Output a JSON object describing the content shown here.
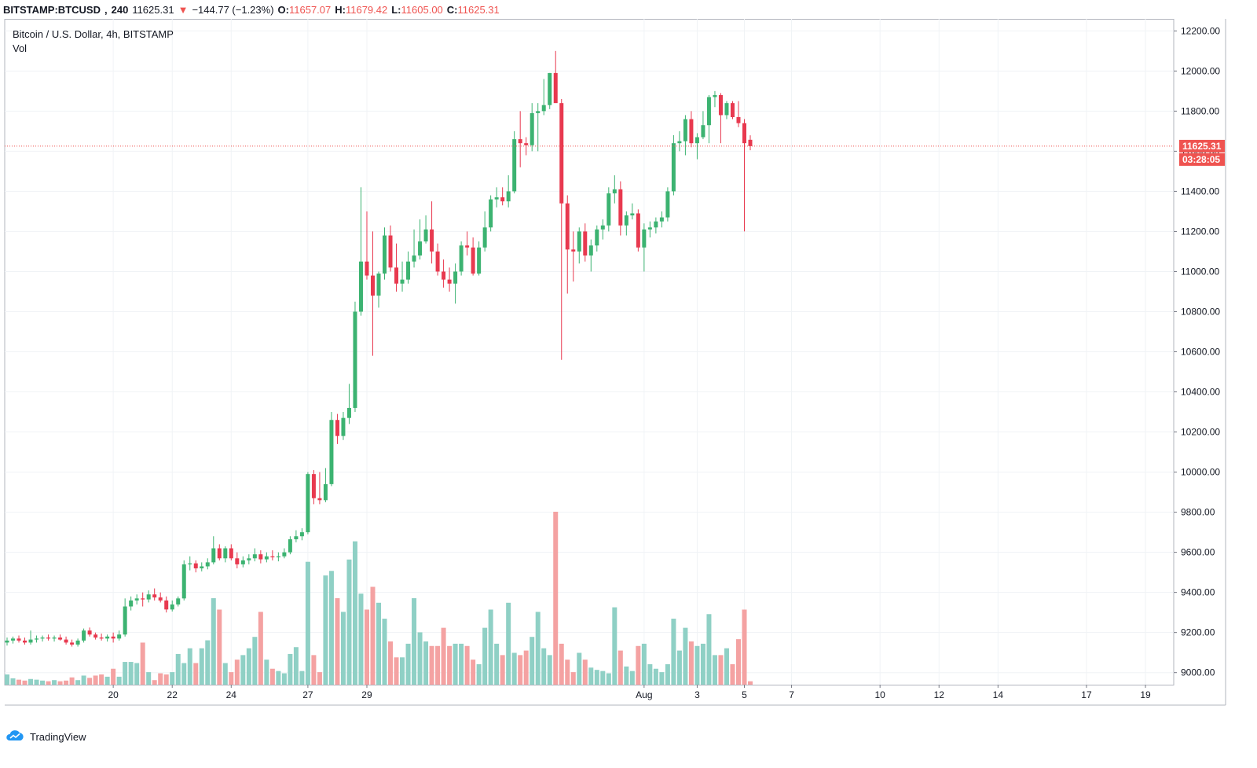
{
  "header": {
    "symbol": "BITSTAMP:BTCUSD",
    "interval": "240",
    "last_price": "11625.31",
    "arrow": "▼",
    "change": "−144.77 (−1.23%)",
    "o_label": "O:",
    "o_value": "11657.07",
    "h_label": "H:",
    "h_value": "11679.42",
    "l_label": "L:",
    "l_value": "11605.00",
    "c_label": "C:",
    "c_value": "11625.31"
  },
  "legend": {
    "title": "Bitcoin / U.S. Dollar, 4h, BITSTAMP",
    "vol_label": "Vol"
  },
  "price_tag": {
    "price": "11625.31",
    "countdown": "03:28:05"
  },
  "colors": {
    "up": "#26a69a",
    "down": "#ef5350",
    "candle_up": "#3cb371",
    "candle_down": "#e8394f",
    "vol_up": "#8fd0c5",
    "vol_down": "#f4a2a2",
    "grid": "#f0f3f6"
  },
  "footer": {
    "brand": "TradingView",
    "logo_icon": "tradingview-cloud-icon"
  },
  "chart_data": {
    "type": "candlestick",
    "title": "Bitcoin / U.S. Dollar, 4h, BITSTAMP",
    "y_axis": {
      "ticks": [
        9000,
        9200,
        9400,
        9600,
        9800,
        10000,
        10200,
        10400,
        10600,
        10800,
        11000,
        11200,
        11400,
        11600,
        11800,
        12000,
        12200
      ],
      "range": [
        8940,
        12260
      ]
    },
    "x_axis": {
      "labels": [
        "20",
        "22",
        "24",
        "27",
        "29",
        "Aug",
        "3",
        "5",
        "7",
        "10",
        "12",
        "14",
        "17",
        "19"
      ]
    },
    "current_price": 11625.31,
    "candles": [
      {
        "o": 9150,
        "h": 9175,
        "l": 9135,
        "c": 9160,
        "v": 0.45
      },
      {
        "o": 9160,
        "h": 9180,
        "l": 9145,
        "c": 9170,
        "v": 0.28
      },
      {
        "o": 9170,
        "h": 9185,
        "l": 9150,
        "c": 9160,
        "v": 0.22
      },
      {
        "o": 9160,
        "h": 9175,
        "l": 9140,
        "c": 9150,
        "v": 0.18
      },
      {
        "o": 9150,
        "h": 9210,
        "l": 9140,
        "c": 9165,
        "v": 0.25
      },
      {
        "o": 9165,
        "h": 9185,
        "l": 9150,
        "c": 9170,
        "v": 0.22
      },
      {
        "o": 9170,
        "h": 9185,
        "l": 9155,
        "c": 9175,
        "v": 0.18
      },
      {
        "o": 9175,
        "h": 9190,
        "l": 9160,
        "c": 9170,
        "v": 0.15
      },
      {
        "o": 9170,
        "h": 9185,
        "l": 9155,
        "c": 9175,
        "v": 0.2
      },
      {
        "o": 9175,
        "h": 9190,
        "l": 9160,
        "c": 9165,
        "v": 0.15
      },
      {
        "o": 9165,
        "h": 9180,
        "l": 9140,
        "c": 9150,
        "v": 0.18
      },
      {
        "o": 9150,
        "h": 9165,
        "l": 9130,
        "c": 9140,
        "v": 0.32
      },
      {
        "o": 9140,
        "h": 9170,
        "l": 9130,
        "c": 9160,
        "v": 0.2
      },
      {
        "o": 9160,
        "h": 9220,
        "l": 9150,
        "c": 9210,
        "v": 0.4
      },
      {
        "o": 9210,
        "h": 9225,
        "l": 9180,
        "c": 9190,
        "v": 0.3
      },
      {
        "o": 9190,
        "h": 9200,
        "l": 9165,
        "c": 9175,
        "v": 0.4
      },
      {
        "o": 9175,
        "h": 9195,
        "l": 9160,
        "c": 9170,
        "v": 0.45
      },
      {
        "o": 9170,
        "h": 9190,
        "l": 9155,
        "c": 9180,
        "v": 0.35
      },
      {
        "o": 9180,
        "h": 9200,
        "l": 9150,
        "c": 9170,
        "v": 0.7
      },
      {
        "o": 9170,
        "h": 9210,
        "l": 9160,
        "c": 9190,
        "v": 0.35
      },
      {
        "o": 9190,
        "h": 9370,
        "l": 9180,
        "c": 9330,
        "v": 1.0
      },
      {
        "o": 9330,
        "h": 9380,
        "l": 9310,
        "c": 9360,
        "v": 1.0
      },
      {
        "o": 9360,
        "h": 9390,
        "l": 9340,
        "c": 9370,
        "v": 0.95
      },
      {
        "o": 9370,
        "h": 9400,
        "l": 9330,
        "c": 9365,
        "v": 1.85
      },
      {
        "o": 9365,
        "h": 9410,
        "l": 9350,
        "c": 9390,
        "v": 0.55
      },
      {
        "o": 9390,
        "h": 9420,
        "l": 9360,
        "c": 9375,
        "v": 0.2
      },
      {
        "o": 9375,
        "h": 9400,
        "l": 9350,
        "c": 9360,
        "v": 0.5
      },
      {
        "o": 9360,
        "h": 9380,
        "l": 9300,
        "c": 9315,
        "v": 0.45
      },
      {
        "o": 9315,
        "h": 9360,
        "l": 9305,
        "c": 9340,
        "v": 0.55
      },
      {
        "o": 9340,
        "h": 9380,
        "l": 9330,
        "c": 9370,
        "v": 1.35
      },
      {
        "o": 9370,
        "h": 9560,
        "l": 9360,
        "c": 9540,
        "v": 0.95
      },
      {
        "o": 9540,
        "h": 9580,
        "l": 9510,
        "c": 9545,
        "v": 1.6
      },
      {
        "o": 9545,
        "h": 9560,
        "l": 9500,
        "c": 9520,
        "v": 0.95
      },
      {
        "o": 9520,
        "h": 9550,
        "l": 9505,
        "c": 9530,
        "v": 1.6
      },
      {
        "o": 9530,
        "h": 9570,
        "l": 9515,
        "c": 9550,
        "v": 1.95
      },
      {
        "o": 9550,
        "h": 9680,
        "l": 9540,
        "c": 9620,
        "v": 3.8
      },
      {
        "o": 9620,
        "h": 9640,
        "l": 9560,
        "c": 9570,
        "v": 3.3
      },
      {
        "o": 9570,
        "h": 9630,
        "l": 9550,
        "c": 9620,
        "v": 0.95
      },
      {
        "o": 9620,
        "h": 9640,
        "l": 9560,
        "c": 9570,
        "v": 0.55
      },
      {
        "o": 9570,
        "h": 9600,
        "l": 9520,
        "c": 9540,
        "v": 1.1
      },
      {
        "o": 9540,
        "h": 9580,
        "l": 9525,
        "c": 9560,
        "v": 1.3
      },
      {
        "o": 9560,
        "h": 9590,
        "l": 9540,
        "c": 9570,
        "v": 1.6
      },
      {
        "o": 9570,
        "h": 9620,
        "l": 9555,
        "c": 9590,
        "v": 2.1
      },
      {
        "o": 9590,
        "h": 9610,
        "l": 9545,
        "c": 9565,
        "v": 3.2
      },
      {
        "o": 9565,
        "h": 9600,
        "l": 9550,
        "c": 9580,
        "v": 1.1
      },
      {
        "o": 9580,
        "h": 9610,
        "l": 9560,
        "c": 9575,
        "v": 0.7
      },
      {
        "o": 9575,
        "h": 9600,
        "l": 9555,
        "c": 9580,
        "v": 0.6
      },
      {
        "o": 9580,
        "h": 9620,
        "l": 9570,
        "c": 9600,
        "v": 0.5
      },
      {
        "o": 9600,
        "h": 9680,
        "l": 9590,
        "c": 9665,
        "v": 1.35
      },
      {
        "o": 9665,
        "h": 9710,
        "l": 9650,
        "c": 9680,
        "v": 1.65
      },
      {
        "o": 9680,
        "h": 9720,
        "l": 9660,
        "c": 9700,
        "v": 0.6
      },
      {
        "o": 9700,
        "h": 10000,
        "l": 9690,
        "c": 9990,
        "v": 5.4
      },
      {
        "o": 9990,
        "h": 10010,
        "l": 9840,
        "c": 9870,
        "v": 1.3
      },
      {
        "o": 9870,
        "h": 10000,
        "l": 9840,
        "c": 9860,
        "v": 0.55
      },
      {
        "o": 9860,
        "h": 10020,
        "l": 9850,
        "c": 9940,
        "v": 4.8
      },
      {
        "o": 9940,
        "h": 10300,
        "l": 9930,
        "c": 10260,
        "v": 5.0
      },
      {
        "o": 10260,
        "h": 10290,
        "l": 10140,
        "c": 10180,
        "v": 3.8
      },
      {
        "o": 10180,
        "h": 10300,
        "l": 10160,
        "c": 10270,
        "v": 3.2
      },
      {
        "o": 10270,
        "h": 10440,
        "l": 10240,
        "c": 10320,
        "v": 5.5
      },
      {
        "o": 10320,
        "h": 10850,
        "l": 10300,
        "c": 10800,
        "v": 6.3
      },
      {
        "o": 10800,
        "h": 11420,
        "l": 10780,
        "c": 11050,
        "v": 4.0
      },
      {
        "o": 11050,
        "h": 11300,
        "l": 10960,
        "c": 10980,
        "v": 3.3
      },
      {
        "o": 10980,
        "h": 11200,
        "l": 10580,
        "c": 10880,
        "v": 4.3
      },
      {
        "o": 10880,
        "h": 11000,
        "l": 10820,
        "c": 10990,
        "v": 3.6
      },
      {
        "o": 10990,
        "h": 11220,
        "l": 10960,
        "c": 11180,
        "v": 2.9
      },
      {
        "o": 11180,
        "h": 11230,
        "l": 11000,
        "c": 11020,
        "v": 1.9
      },
      {
        "o": 11020,
        "h": 11140,
        "l": 10900,
        "c": 10940,
        "v": 1.2
      },
      {
        "o": 10940,
        "h": 11050,
        "l": 10900,
        "c": 10960,
        "v": 1.2
      },
      {
        "o": 10960,
        "h": 11100,
        "l": 10940,
        "c": 11050,
        "v": 1.8
      },
      {
        "o": 11050,
        "h": 11210,
        "l": 11020,
        "c": 11080,
        "v": 3.8
      },
      {
        "o": 11080,
        "h": 11260,
        "l": 11060,
        "c": 11150,
        "v": 2.3
      },
      {
        "o": 11150,
        "h": 11280,
        "l": 11140,
        "c": 11210,
        "v": 1.9
      },
      {
        "o": 11210,
        "h": 11350,
        "l": 11040,
        "c": 11100,
        "v": 1.7
      },
      {
        "o": 11100,
        "h": 11140,
        "l": 10980,
        "c": 11000,
        "v": 1.7
      },
      {
        "o": 11000,
        "h": 11060,
        "l": 10920,
        "c": 10960,
        "v": 2.5
      },
      {
        "o": 10960,
        "h": 11020,
        "l": 10900,
        "c": 10940,
        "v": 1.7
      },
      {
        "o": 10940,
        "h": 11040,
        "l": 10840,
        "c": 11000,
        "v": 1.8
      },
      {
        "o": 11000,
        "h": 11150,
        "l": 10980,
        "c": 11130,
        "v": 1.8
      },
      {
        "o": 11130,
        "h": 11200,
        "l": 11080,
        "c": 11120,
        "v": 1.7
      },
      {
        "o": 11120,
        "h": 11170,
        "l": 10980,
        "c": 10990,
        "v": 1.1
      },
      {
        "o": 10990,
        "h": 11150,
        "l": 10980,
        "c": 11120,
        "v": 0.9
      },
      {
        "o": 11120,
        "h": 11300,
        "l": 11100,
        "c": 11220,
        "v": 2.5
      },
      {
        "o": 11220,
        "h": 11380,
        "l": 11200,
        "c": 11360,
        "v": 3.3
      },
      {
        "o": 11360,
        "h": 11420,
        "l": 11320,
        "c": 11370,
        "v": 1.8
      },
      {
        "o": 11370,
        "h": 11420,
        "l": 11330,
        "c": 11350,
        "v": 1.3
      },
      {
        "o": 11350,
        "h": 11480,
        "l": 11320,
        "c": 11400,
        "v": 3.6
      },
      {
        "o": 11400,
        "h": 11700,
        "l": 11390,
        "c": 11660,
        "v": 1.4
      },
      {
        "o": 11660,
        "h": 11800,
        "l": 11520,
        "c": 11640,
        "v": 1.3
      },
      {
        "o": 11640,
        "h": 11670,
        "l": 11580,
        "c": 11630,
        "v": 1.5
      },
      {
        "o": 11630,
        "h": 11840,
        "l": 11600,
        "c": 11790,
        "v": 2.1
      },
      {
        "o": 11790,
        "h": 11840,
        "l": 11600,
        "c": 11800,
        "v": 3.2
      },
      {
        "o": 11800,
        "h": 11960,
        "l": 11780,
        "c": 11830,
        "v": 1.6
      },
      {
        "o": 11830,
        "h": 11990,
        "l": 11810,
        "c": 11990,
        "v": 1.3
      },
      {
        "o": 11990,
        "h": 12100,
        "l": 11850,
        "c": 11840,
        "v": 7.6
      },
      {
        "o": 11840,
        "h": 11860,
        "l": 10560,
        "c": 11340,
        "v": 1.8
      },
      {
        "o": 11340,
        "h": 11380,
        "l": 10890,
        "c": 11110,
        "v": 1.1
      },
      {
        "o": 11110,
        "h": 11200,
        "l": 10950,
        "c": 11100,
        "v": 0.55
      },
      {
        "o": 11100,
        "h": 11220,
        "l": 11040,
        "c": 11200,
        "v": 1.4
      },
      {
        "o": 11200,
        "h": 11240,
        "l": 11050,
        "c": 11080,
        "v": 1.1
      },
      {
        "o": 11080,
        "h": 11160,
        "l": 11000,
        "c": 11130,
        "v": 0.75
      },
      {
        "o": 11130,
        "h": 11230,
        "l": 11100,
        "c": 11210,
        "v": 0.65
      },
      {
        "o": 11210,
        "h": 11260,
        "l": 11160,
        "c": 11230,
        "v": 0.6
      },
      {
        "o": 11230,
        "h": 11420,
        "l": 11200,
        "c": 11390,
        "v": 0.5
      },
      {
        "o": 11390,
        "h": 11480,
        "l": 11340,
        "c": 11410,
        "v": 3.4
      },
      {
        "o": 11410,
        "h": 11450,
        "l": 11180,
        "c": 11230,
        "v": 1.5
      },
      {
        "o": 11230,
        "h": 11300,
        "l": 11180,
        "c": 11280,
        "v": 0.8
      },
      {
        "o": 11280,
        "h": 11340,
        "l": 11260,
        "c": 11290,
        "v": 0.6
      },
      {
        "o": 11290,
        "h": 11310,
        "l": 11100,
        "c": 11120,
        "v": 1.7
      },
      {
        "o": 11120,
        "h": 11240,
        "l": 11000,
        "c": 11210,
        "v": 1.8
      },
      {
        "o": 11210,
        "h": 11250,
        "l": 11170,
        "c": 11220,
        "v": 0.9
      },
      {
        "o": 11220,
        "h": 11270,
        "l": 11190,
        "c": 11250,
        "v": 0.7
      },
      {
        "o": 11250,
        "h": 11300,
        "l": 11220,
        "c": 11270,
        "v": 0.55
      },
      {
        "o": 11270,
        "h": 11420,
        "l": 11250,
        "c": 11400,
        "v": 0.9
      },
      {
        "o": 11400,
        "h": 11680,
        "l": 11380,
        "c": 11640,
        "v": 2.9
      },
      {
        "o": 11640,
        "h": 11700,
        "l": 11600,
        "c": 11650,
        "v": 1.5
      },
      {
        "o": 11650,
        "h": 11780,
        "l": 11580,
        "c": 11760,
        "v": 2.5
      },
      {
        "o": 11760,
        "h": 11800,
        "l": 11620,
        "c": 11640,
        "v": 1.9
      },
      {
        "o": 11640,
        "h": 11690,
        "l": 11560,
        "c": 11670,
        "v": 1.7
      },
      {
        "o": 11670,
        "h": 11800,
        "l": 11660,
        "c": 11730,
        "v": 1.8
      },
      {
        "o": 11730,
        "h": 11880,
        "l": 11640,
        "c": 11870,
        "v": 3.1
      },
      {
        "o": 11870,
        "h": 11900,
        "l": 11820,
        "c": 11880,
        "v": 1.3
      },
      {
        "o": 11880,
        "h": 11890,
        "l": 11640,
        "c": 11780,
        "v": 1.3
      },
      {
        "o": 11780,
        "h": 11850,
        "l": 11760,
        "c": 11840,
        "v": 1.6
      },
      {
        "o": 11840,
        "h": 11850,
        "l": 11760,
        "c": 11770,
        "v": 0.9
      },
      {
        "o": 11770,
        "h": 11850,
        "l": 11720,
        "c": 11740,
        "v": 2.0
      },
      {
        "o": 11740,
        "h": 11760,
        "l": 11200,
        "c": 11640,
        "v": 3.3
      },
      {
        "o": 11657.07,
        "h": 11679.42,
        "l": 11605,
        "c": 11625.31,
        "v": 0.15
      }
    ]
  }
}
